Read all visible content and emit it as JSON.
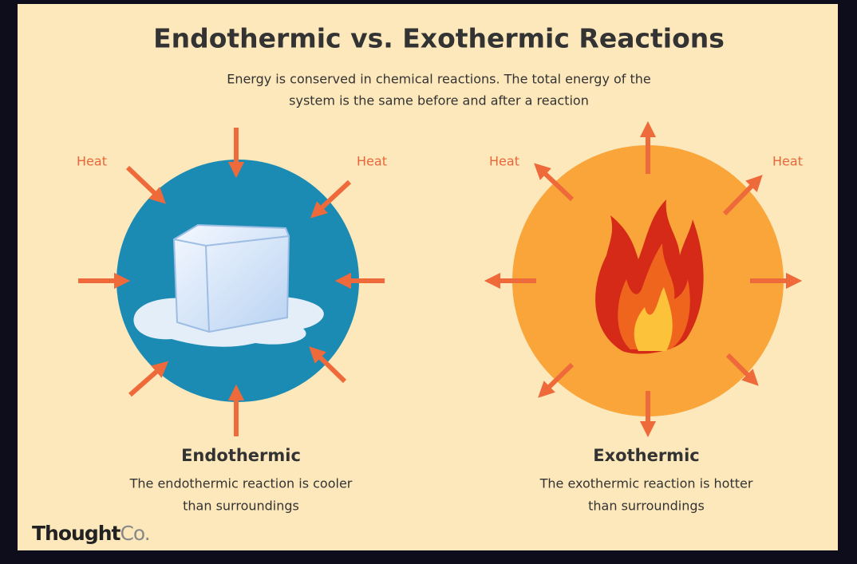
{
  "title": "Endothermic vs. Exothermic Reactions",
  "subtitle": [
    "Energy is conserved in chemical reactions. The total energy of the",
    "system is the same before and after a reaction"
  ],
  "panels": [
    {
      "heat_labels": [
        "Heat",
        "Heat"
      ],
      "name": "Endothermic",
      "description": [
        "The endothermic reaction is cooler",
        "than surroundings"
      ]
    },
    {
      "heat_labels": [
        "Heat",
        "Heat"
      ],
      "name": "Exothermic",
      "description": [
        "The exothermic reaction is hotter",
        "than surroundings"
      ]
    }
  ],
  "logo": {
    "brand": "Thought",
    "suffix": "Co."
  }
}
